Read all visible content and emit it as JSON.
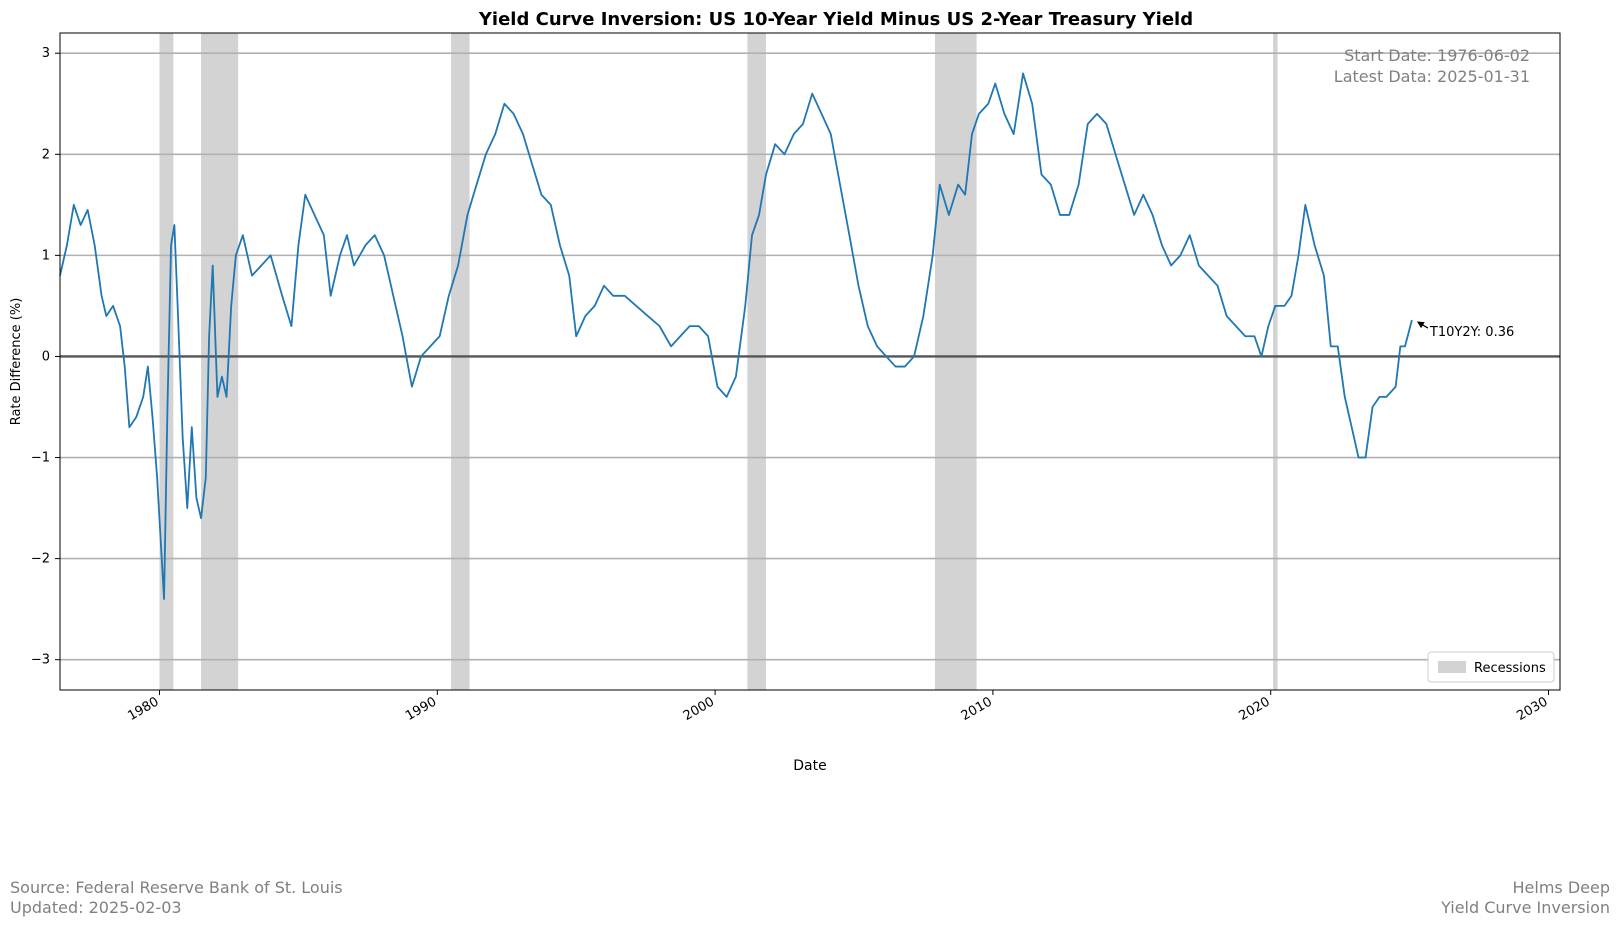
{
  "chart_data": {
    "type": "line",
    "title": "Yield Curve Inversion: US 10-Year Yield Minus US 2-Year Treasury Yield",
    "xlabel": "Date",
    "ylabel": "Rate Difference (%)",
    "xlim": [
      "1976-06-02",
      "2030-06-01"
    ],
    "ylim": [
      -3.3,
      3.2
    ],
    "x_ticks": [
      "1980",
      "1990",
      "2000",
      "2010",
      "2020",
      "2030"
    ],
    "y_ticks": [
      {
        "value": 3,
        "label": "3"
      },
      {
        "value": 2,
        "label": "2"
      },
      {
        "value": 1,
        "label": "1"
      },
      {
        "value": 0,
        "label": "0"
      },
      {
        "value": -1,
        "label": "−1"
      },
      {
        "value": -2,
        "label": "−2"
      },
      {
        "value": -3,
        "label": "−3"
      }
    ],
    "grid": "horizontal",
    "zero_line": true,
    "info_box": {
      "start_label": "Start Date: 1976-06-02",
      "latest_label": "Latest Data: 2025-01-31"
    },
    "annotation": {
      "text": "T10Y2Y: 0.36",
      "x": "2025-01-31",
      "y": 0.36
    },
    "legend": {
      "placement": "bottom-right",
      "entries": [
        "Recessions"
      ]
    },
    "colors": {
      "line": "#1f77b4",
      "recession": "#d3d3d3",
      "grid": "#b0b0b0",
      "zero": "#555555"
    },
    "recessions": [
      {
        "start": "1980-01-01",
        "end": "1980-07-01"
      },
      {
        "start": "1981-07-01",
        "end": "1982-11-01"
      },
      {
        "start": "1990-07-01",
        "end": "1991-03-01"
      },
      {
        "start": "2001-03-01",
        "end": "2001-11-01"
      },
      {
        "start": "2007-12-01",
        "end": "2009-06-01"
      },
      {
        "start": "2020-02-01",
        "end": "2020-04-01"
      }
    ],
    "series": [
      {
        "name": "T10Y2Y",
        "points": [
          [
            "1976-06-02",
            0.8
          ],
          [
            "1976-09-01",
            1.1
          ],
          [
            "1976-12-01",
            1.5
          ],
          [
            "1977-03-01",
            1.3
          ],
          [
            "1977-06-01",
            1.45
          ],
          [
            "1977-09-01",
            1.1
          ],
          [
            "1977-12-01",
            0.6
          ],
          [
            "1978-02-01",
            0.4
          ],
          [
            "1978-05-01",
            0.5
          ],
          [
            "1978-08-01",
            0.3
          ],
          [
            "1978-10-01",
            -0.1
          ],
          [
            "1978-12-01",
            -0.7
          ],
          [
            "1979-03-01",
            -0.6
          ],
          [
            "1979-06-01",
            -0.4
          ],
          [
            "1979-08-01",
            -0.1
          ],
          [
            "1979-10-01",
            -0.6
          ],
          [
            "1979-12-01",
            -1.2
          ],
          [
            "1980-01-15",
            -1.8
          ],
          [
            "1980-03-01",
            -2.4
          ],
          [
            "1980-04-15",
            -0.5
          ],
          [
            "1980-06-01",
            1.1
          ],
          [
            "1980-07-15",
            1.3
          ],
          [
            "1980-09-01",
            0.4
          ],
          [
            "1980-11-01",
            -0.8
          ],
          [
            "1981-01-01",
            -1.5
          ],
          [
            "1981-03-01",
            -0.7
          ],
          [
            "1981-05-01",
            -1.4
          ],
          [
            "1981-07-01",
            -1.6
          ],
          [
            "1981-09-01",
            -1.2
          ],
          [
            "1981-10-15",
            0.2
          ],
          [
            "1981-12-01",
            0.9
          ],
          [
            "1982-02-01",
            -0.4
          ],
          [
            "1982-04-01",
            -0.2
          ],
          [
            "1982-06-01",
            -0.4
          ],
          [
            "1982-08-01",
            0.5
          ],
          [
            "1982-10-01",
            1.0
          ],
          [
            "1983-01-01",
            1.2
          ],
          [
            "1983-05-01",
            0.8
          ],
          [
            "1983-09-01",
            0.9
          ],
          [
            "1984-01-01",
            1.0
          ],
          [
            "1984-06-01",
            0.6
          ],
          [
            "1984-10-01",
            0.3
          ],
          [
            "1985-01-01",
            1.1
          ],
          [
            "1985-04-01",
            1.6
          ],
          [
            "1985-08-01",
            1.4
          ],
          [
            "1985-12-01",
            1.2
          ],
          [
            "1986-03-01",
            0.6
          ],
          [
            "1986-07-01",
            1.0
          ],
          [
            "1986-10-01",
            1.2
          ],
          [
            "1987-01-01",
            0.9
          ],
          [
            "1987-06-01",
            1.1
          ],
          [
            "1987-10-01",
            1.2
          ],
          [
            "1988-02-01",
            1.0
          ],
          [
            "1988-06-01",
            0.6
          ],
          [
            "1988-10-01",
            0.2
          ],
          [
            "1989-02-01",
            -0.3
          ],
          [
            "1989-06-01",
            0.0
          ],
          [
            "1989-10-01",
            0.1
          ],
          [
            "1990-02-01",
            0.2
          ],
          [
            "1990-06-01",
            0.6
          ],
          [
            "1990-10-01",
            0.9
          ],
          [
            "1991-02-01",
            1.4
          ],
          [
            "1991-06-01",
            1.7
          ],
          [
            "1991-10-01",
            2.0
          ],
          [
            "1992-02-01",
            2.2
          ],
          [
            "1992-06-01",
            2.5
          ],
          [
            "1992-10-01",
            2.4
          ],
          [
            "1993-02-01",
            2.2
          ],
          [
            "1993-06-01",
            1.9
          ],
          [
            "1993-10-01",
            1.6
          ],
          [
            "1994-02-01",
            1.5
          ],
          [
            "1994-06-01",
            1.1
          ],
          [
            "1994-10-01",
            0.8
          ],
          [
            "1995-01-01",
            0.2
          ],
          [
            "1995-05-01",
            0.4
          ],
          [
            "1995-09-01",
            0.5
          ],
          [
            "1996-01-01",
            0.7
          ],
          [
            "1996-05-01",
            0.6
          ],
          [
            "1996-10-01",
            0.6
          ],
          [
            "1997-03-01",
            0.5
          ],
          [
            "1997-08-01",
            0.4
          ],
          [
            "1998-01-01",
            0.3
          ],
          [
            "1998-06-01",
            0.1
          ],
          [
            "1998-10-01",
            0.2
          ],
          [
            "1999-02-01",
            0.3
          ],
          [
            "1999-06-01",
            0.3
          ],
          [
            "1999-10-01",
            0.2
          ],
          [
            "2000-02-01",
            -0.3
          ],
          [
            "2000-06-01",
            -0.4
          ],
          [
            "2000-10-01",
            -0.2
          ],
          [
            "2001-02-01",
            0.5
          ],
          [
            "2001-05-01",
            1.2
          ],
          [
            "2001-08-01",
            1.4
          ],
          [
            "2001-11-01",
            1.8
          ],
          [
            "2002-03-01",
            2.1
          ],
          [
            "2002-07-01",
            2.0
          ],
          [
            "2002-11-01",
            2.2
          ],
          [
            "2003-03-01",
            2.3
          ],
          [
            "2003-07-01",
            2.6
          ],
          [
            "2003-11-01",
            2.4
          ],
          [
            "2004-03-01",
            2.2
          ],
          [
            "2004-07-01",
            1.7
          ],
          [
            "2004-11-01",
            1.2
          ],
          [
            "2005-03-01",
            0.7
          ],
          [
            "2005-07-01",
            0.3
          ],
          [
            "2005-11-01",
            0.1
          ],
          [
            "2006-03-01",
            0.0
          ],
          [
            "2006-07-01",
            -0.1
          ],
          [
            "2006-11-01",
            -0.1
          ],
          [
            "2007-03-01",
            0.0
          ],
          [
            "2007-07-01",
            0.4
          ],
          [
            "2007-11-01",
            1.0
          ],
          [
            "2008-02-01",
            1.7
          ],
          [
            "2008-06-01",
            1.4
          ],
          [
            "2008-10-01",
            1.7
          ],
          [
            "2009-01-01",
            1.6
          ],
          [
            "2009-04-01",
            2.2
          ],
          [
            "2009-07-01",
            2.4
          ],
          [
            "2009-11-01",
            2.5
          ],
          [
            "2010-02-01",
            2.7
          ],
          [
            "2010-06-01",
            2.4
          ],
          [
            "2010-10-01",
            2.2
          ],
          [
            "2011-02-01",
            2.8
          ],
          [
            "2011-06-01",
            2.5
          ],
          [
            "2011-10-01",
            1.8
          ],
          [
            "2012-02-01",
            1.7
          ],
          [
            "2012-06-01",
            1.4
          ],
          [
            "2012-10-01",
            1.4
          ],
          [
            "2013-02-01",
            1.7
          ],
          [
            "2013-06-01",
            2.3
          ],
          [
            "2013-10-01",
            2.4
          ],
          [
            "2014-02-01",
            2.3
          ],
          [
            "2014-06-01",
            2.0
          ],
          [
            "2014-10-01",
            1.7
          ],
          [
            "2015-02-01",
            1.4
          ],
          [
            "2015-06-01",
            1.6
          ],
          [
            "2015-10-01",
            1.4
          ],
          [
            "2016-02-01",
            1.1
          ],
          [
            "2016-06-01",
            0.9
          ],
          [
            "2016-10-01",
            1.0
          ],
          [
            "2017-02-01",
            1.2
          ],
          [
            "2017-06-01",
            0.9
          ],
          [
            "2017-10-01",
            0.8
          ],
          [
            "2018-02-01",
            0.7
          ],
          [
            "2018-06-01",
            0.4
          ],
          [
            "2018-10-01",
            0.3
          ],
          [
            "2019-02-01",
            0.2
          ],
          [
            "2019-06-01",
            0.2
          ],
          [
            "2019-09-01",
            0.0
          ],
          [
            "2019-12-01",
            0.3
          ],
          [
            "2020-03-01",
            0.5
          ],
          [
            "2020-07-01",
            0.5
          ],
          [
            "2020-10-01",
            0.6
          ],
          [
            "2021-01-01",
            1.0
          ],
          [
            "2021-04-01",
            1.5
          ],
          [
            "2021-08-01",
            1.1
          ],
          [
            "2021-12-01",
            0.8
          ],
          [
            "2022-03-01",
            0.1
          ],
          [
            "2022-06-01",
            0.1
          ],
          [
            "2022-09-01",
            -0.4
          ],
          [
            "2022-12-01",
            -0.7
          ],
          [
            "2023-03-01",
            -1.0
          ],
          [
            "2023-06-01",
            -1.0
          ],
          [
            "2023-09-01",
            -0.5
          ],
          [
            "2023-12-01",
            -0.4
          ],
          [
            "2024-03-01",
            -0.4
          ],
          [
            "2024-07-01",
            -0.3
          ],
          [
            "2024-09-01",
            0.1
          ],
          [
            "2024-11-01",
            0.1
          ],
          [
            "2025-01-31",
            0.36
          ]
        ]
      }
    ]
  },
  "footer": {
    "source": "Source: Federal Reserve Bank of St. Louis",
    "updated": "Updated: 2025-02-03",
    "brand": "Helms Deep",
    "subtitle": "Yield Curve Inversion"
  }
}
